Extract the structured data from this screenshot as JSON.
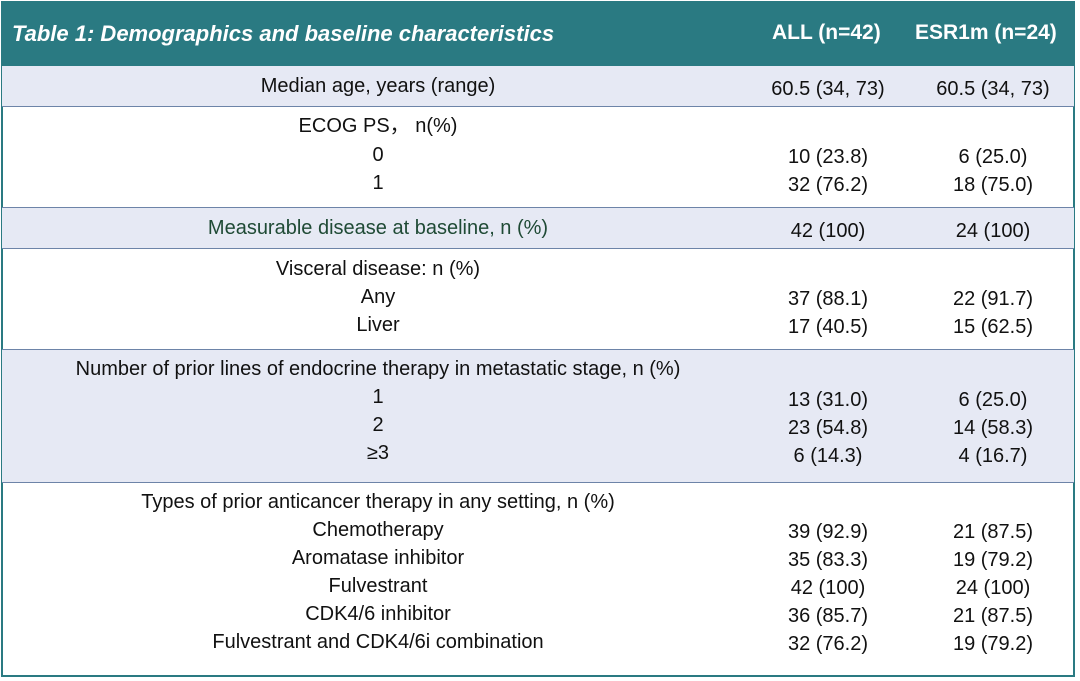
{
  "table": {
    "title": "Table 1: Demographics and baseline characteristics",
    "col_all": "ALL (n=42)",
    "col_esr": "ESR1m (n=24)",
    "age": {
      "label": "Median age, years (range)",
      "all": "60.5 (34, 73)",
      "esr": "60.5 (34, 73)"
    },
    "ecog": {
      "label": "ECOG PS， n(%)",
      "rows": [
        {
          "label": "0",
          "all": "10 (23.8)",
          "esr": "6 (25.0)"
        },
        {
          "label": "1",
          "all": "32 (76.2)",
          "esr": "18 (75.0)"
        }
      ]
    },
    "measurable": {
      "label": "Measurable disease at baseline, n (%)",
      "all": "42 (100)",
      "esr": "24 (100)"
    },
    "visceral": {
      "label": "Visceral disease: n (%)",
      "rows": [
        {
          "label": "Any",
          "all": "37 (88.1)",
          "esr": "22 (91.7)"
        },
        {
          "label": "Liver",
          "all": "17 (40.5)",
          "esr": "15 (62.5)"
        }
      ]
    },
    "prior_lines": {
      "label": "Number of prior lines of endocrine therapy in metastatic stage, n (%)",
      "rows": [
        {
          "label": "1",
          "all": "13 (31.0)",
          "esr": "6 (25.0)"
        },
        {
          "label": "2",
          "all": "23 (54.8)",
          "esr": "14 (58.3)"
        },
        {
          "label": "≥3",
          "all": "6 (14.3)",
          "esr": "4 (16.7)"
        }
      ]
    },
    "prior_types": {
      "label": "Types of prior anticancer therapy in any setting, n (%)",
      "rows": [
        {
          "label": "Chemotherapy",
          "all": "39 (92.9)",
          "esr": "21 (87.5)"
        },
        {
          "label": "Aromatase inhibitor",
          "all": "35 (83.3)",
          "esr": "19 (79.2)"
        },
        {
          "label": "Fulvestrant",
          "all": "42 (100)",
          "esr": "24 (100)"
        },
        {
          "label": "CDK4/6 inhibitor",
          "all": "36 (85.7)",
          "esr": "21 (87.5)"
        },
        {
          "label": "Fulvestrant and CDK4/6i combination",
          "all": "32 (76.2)",
          "esr": "19 (79.2)"
        }
      ]
    }
  },
  "colors": {
    "header": "#2a7a82",
    "shaded": "#e6e9f4",
    "separator": "#6d84a8",
    "green_text": "#1f4a35"
  }
}
